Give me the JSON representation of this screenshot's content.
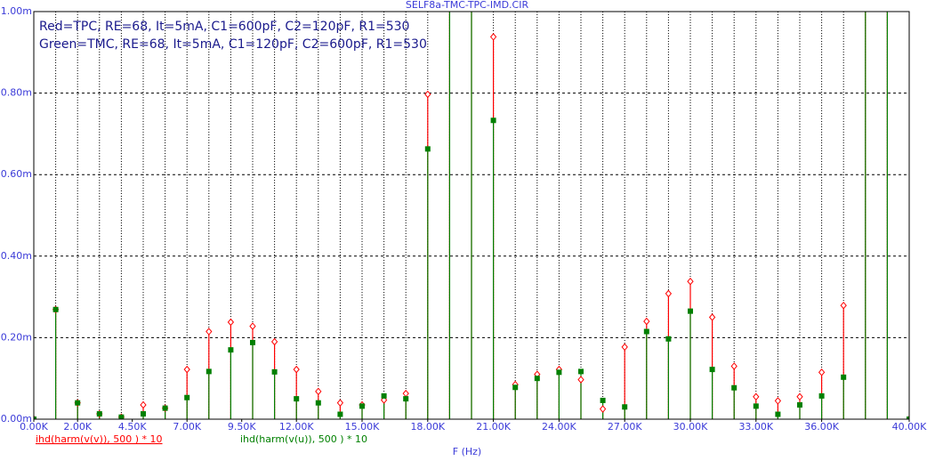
{
  "chart_data": {
    "type": "stem",
    "title": "SELF8a-TMC-TPC-IMD.CIR",
    "xlabel": "F (Hz)",
    "annotations": [
      "Red=TPC, RE=68, It=5mA, C1=600pF, C2=120pF, R1=530",
      "Green=TMC, RE=68, It=5mA, C1=120pF, C2=600pF, R1=530"
    ],
    "x": [
      0,
      1000,
      2000,
      3000,
      4000,
      5000,
      6000,
      7000,
      8000,
      9000,
      10000,
      11000,
      12000,
      13000,
      14000,
      15000,
      16000,
      17000,
      18000,
      19000,
      20000,
      21000,
      22000,
      23000,
      24000,
      25000,
      26000,
      27000,
      28000,
      29000,
      30000,
      31000,
      32000,
      33000,
      34000,
      35000,
      36000,
      37000,
      38000,
      39000,
      40000
    ],
    "series": [
      {
        "name": "ihd(harm(v(v)), 500 ) * 10",
        "color": "#ff0000",
        "marker": "diamond",
        "values": [
          0,
          0.269,
          0.04,
          0.013,
          0.005,
          0.035,
          0.027,
          0.122,
          0.215,
          0.238,
          0.228,
          0.19,
          0.122,
          0.068,
          0.04,
          0.035,
          0.047,
          0.063,
          0.797,
          1.5,
          1.5,
          0.938,
          0.085,
          0.11,
          0.122,
          0.097,
          0.025,
          0.177,
          0.24,
          0.308,
          0.338,
          0.25,
          0.13,
          0.055,
          0.045,
          0.055,
          0.115,
          0.279,
          1.5,
          1.5,
          0
        ]
      },
      {
        "name": "ihd(harm(v(u)), 500 ) * 10",
        "color": "#008000",
        "marker": "square",
        "values": [
          0,
          0.269,
          0.04,
          0.013,
          0.005,
          0.013,
          0.027,
          0.053,
          0.117,
          0.17,
          0.188,
          0.116,
          0.05,
          0.04,
          0.012,
          0.032,
          0.057,
          0.05,
          0.663,
          1.5,
          1.5,
          0.733,
          0.078,
          0.1,
          0.115,
          0.117,
          0.046,
          0.03,
          0.215,
          0.197,
          0.265,
          0.122,
          0.077,
          0.032,
          0.012,
          0.035,
          0.057,
          0.103,
          1.5,
          1.5,
          0
        ]
      }
    ],
    "xlim": [
      0,
      40000
    ],
    "xticks": [
      {
        "value": 0,
        "label": "0.00K"
      },
      {
        "value": 2000,
        "label": "2.00K"
      },
      {
        "value": 4500,
        "label": "4.50K"
      },
      {
        "value": 7000,
        "label": "7.00K"
      },
      {
        "value": 9500,
        "label": "9.50K"
      },
      {
        "value": 12000,
        "label": "12.00K"
      },
      {
        "value": 15000,
        "label": "15.00K"
      },
      {
        "value": 18000,
        "label": "18.00K"
      },
      {
        "value": 21000,
        "label": "21.00K"
      },
      {
        "value": 24000,
        "label": "24.00K"
      },
      {
        "value": 27000,
        "label": "27.00K"
      },
      {
        "value": 30000,
        "label": "30.00K"
      },
      {
        "value": 33000,
        "label": "33.00K"
      },
      {
        "value": 36000,
        "label": "36.00K"
      },
      {
        "value": 40000,
        "label": "40.00K"
      }
    ],
    "ylim": [
      0,
      1
    ],
    "yticks": [
      {
        "value": 0,
        "label": "0.00m"
      },
      {
        "value": 0.2,
        "label": "0.20m"
      },
      {
        "value": 0.4,
        "label": "0.40m"
      },
      {
        "value": 0.6,
        "label": "0.60m"
      },
      {
        "value": 0.8,
        "label": "0.80m"
      },
      {
        "value": 1,
        "label": "1.00m"
      }
    ],
    "grid": true
  }
}
